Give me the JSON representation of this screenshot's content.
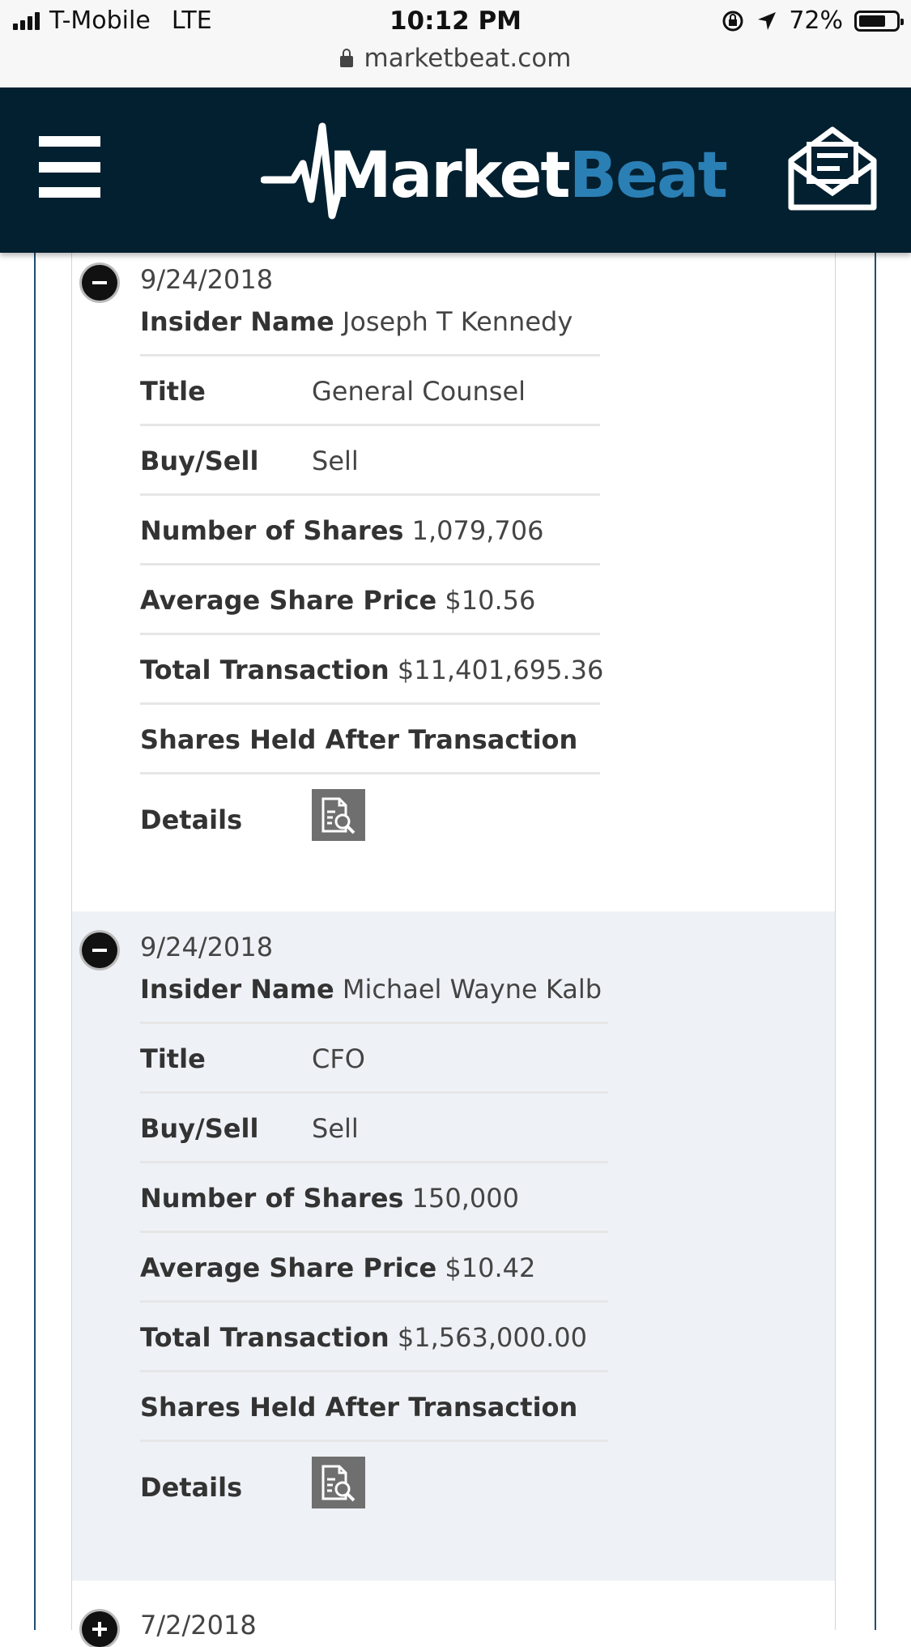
{
  "status_bar": {
    "carrier": "T-Mobile",
    "network": "LTE",
    "time": "10:12 PM",
    "battery": "72%",
    "battery_level": 0.72,
    "url": "marketbeat.com"
  },
  "header": {
    "logo_white": "Market",
    "logo_blue": "Beat",
    "menu_icon": "hamburger-menu-icon",
    "mail_icon": "envelope-newsletter-icon"
  },
  "labels": {
    "insider_name": "Insider Name",
    "title": "Title",
    "buy_sell": "Buy/Sell",
    "number_of_shares": "Number of Shares",
    "average_share_price": "Average Share Price",
    "total_transaction": "Total Transaction",
    "shares_held_after": "Shares Held After Transaction",
    "details": "Details"
  },
  "transactions": [
    {
      "date": "9/24/2018",
      "insider_name": "Joseph T Kennedy",
      "title": "General Counsel",
      "buy_sell": "Sell",
      "number_of_shares": "1,079,706",
      "average_share_price": "$10.56",
      "total_transaction": "$11,401,695.36",
      "shares_held_after": ""
    },
    {
      "date": "9/24/2018",
      "insider_name": "Michael Wayne Kalb",
      "title": "CFO",
      "buy_sell": "Sell",
      "number_of_shares": "150,000",
      "average_share_price": "$10.42",
      "total_transaction": "$1,563,000.00",
      "shares_held_after": ""
    },
    {
      "date": "7/2/2018"
    }
  ]
}
